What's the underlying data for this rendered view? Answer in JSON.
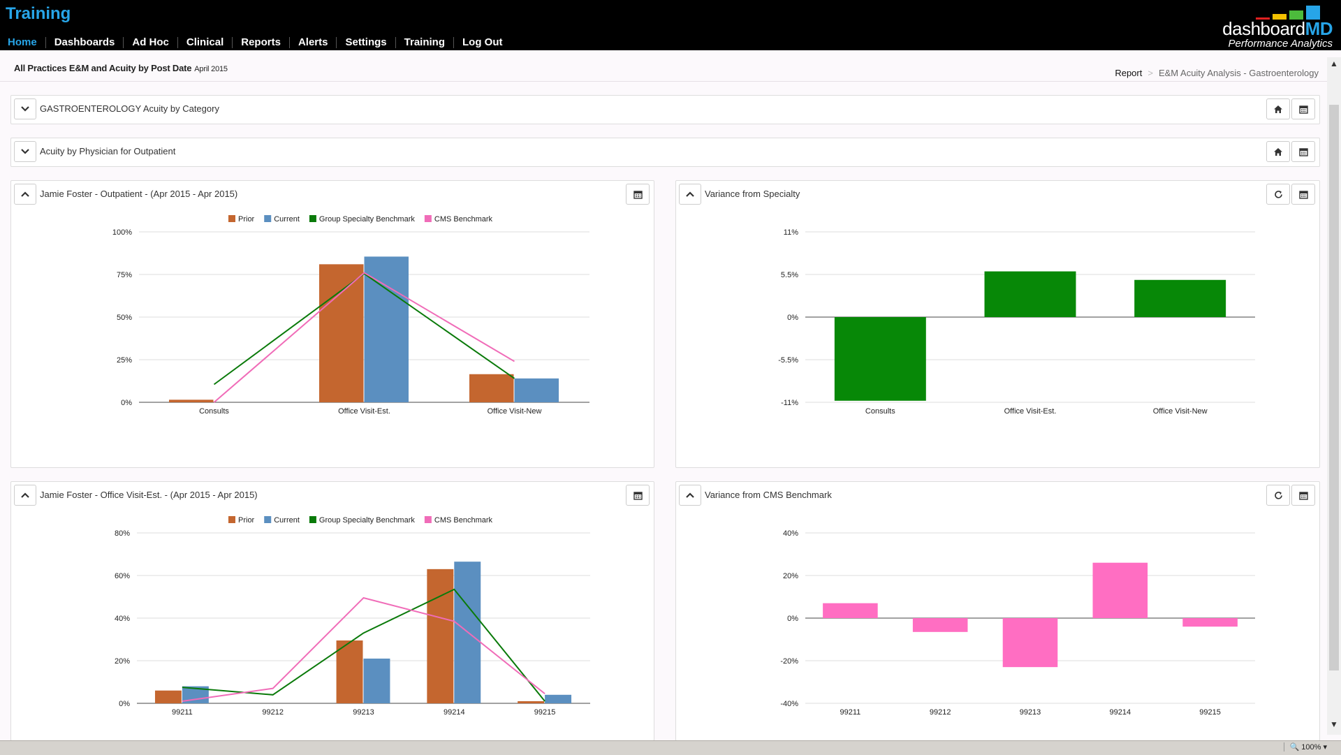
{
  "app": {
    "title": "Training",
    "logo_name_1": "dashboard",
    "logo_name_2": "MD",
    "logo_tagline": "Performance Analytics",
    "logo_colors": [
      "#e02020",
      "#f2c000",
      "#4cbb3c",
      "#27a5e8"
    ]
  },
  "nav": [
    {
      "label": "Home",
      "active": true
    },
    {
      "label": "Dashboards"
    },
    {
      "label": "Ad Hoc"
    },
    {
      "label": "Clinical"
    },
    {
      "label": "Reports"
    },
    {
      "label": "Alerts"
    },
    {
      "label": "Settings"
    },
    {
      "label": "Training"
    },
    {
      "label": "Log Out"
    }
  ],
  "header": {
    "title": "All Practices E&M and Acuity by Post Date",
    "date": "April 2015",
    "breadcrumb_root": "Report",
    "breadcrumb_sep": ">",
    "breadcrumb_current": "E&M Acuity Analysis - Gastroenterology"
  },
  "panels": {
    "category": {
      "title": "GASTROENTEROLOGY Acuity by Category"
    },
    "physician": {
      "title": "Acuity by Physician for Outpatient"
    },
    "outpatient": {
      "title": "Jamie Foster - Outpatient - (Apr 2015 - Apr 2015)"
    },
    "variance_specialty": {
      "title": "Variance from Specialty"
    },
    "office_est": {
      "title": "Jamie Foster - Office Visit-Est. - (Apr 2015 - Apr 2015)"
    },
    "variance_cms": {
      "title": "Variance from CMS Benchmark"
    }
  },
  "icons": {
    "collapse": "chevron-icon",
    "home": "home-icon",
    "calendar": "calendar-icon",
    "refresh": "refresh-icon"
  },
  "statusbar": {
    "zoom": "100%"
  },
  "chart_data": [
    {
      "id": "outpatient",
      "type": "bar",
      "categories": [
        "Consults",
        "Office Visit-Est.",
        "Office Visit-New"
      ],
      "series": [
        {
          "name": "Prior",
          "kind": "bar",
          "color": "#c4662f",
          "values": [
            1.5,
            81,
            16.5
          ]
        },
        {
          "name": "Current",
          "kind": "bar",
          "color": "#5b8fc0",
          "values": [
            0,
            85.5,
            14
          ]
        },
        {
          "name": "Group Specialty Benchmark",
          "kind": "line",
          "color": "#0a7a0a",
          "values": [
            10.5,
            75.5,
            14
          ]
        },
        {
          "name": "CMS Benchmark",
          "kind": "line",
          "color": "#f06cb8",
          "values": [
            0,
            76,
            24
          ]
        }
      ],
      "ylim": [
        0,
        100
      ],
      "yticks": [
        0,
        25,
        50,
        75,
        100
      ],
      "ytick_labels": [
        "0%",
        "25%",
        "50%",
        "75%",
        "100%"
      ],
      "legend": "top"
    },
    {
      "id": "variance_specialty",
      "type": "bar",
      "categories": [
        "Consults",
        "Office Visit-Est.",
        "Office Visit-New"
      ],
      "series": [
        {
          "kind": "bar",
          "color": "#078807",
          "values": [
            -10.8,
            5.9,
            4.8
          ]
        }
      ],
      "ylim": [
        -11,
        11
      ],
      "yticks": [
        -11,
        -5.5,
        0,
        5.5,
        11
      ],
      "ytick_labels": [
        "-11%",
        "-5.5%",
        "0%",
        "5.5%",
        "11%"
      ]
    },
    {
      "id": "office_est",
      "type": "bar",
      "categories": [
        "99211",
        "99212",
        "99213",
        "99214",
        "99215"
      ],
      "series": [
        {
          "name": "Prior",
          "kind": "bar",
          "color": "#c4662f",
          "values": [
            6,
            0,
            29.5,
            63,
            1
          ]
        },
        {
          "name": "Current",
          "kind": "bar",
          "color": "#5b8fc0",
          "values": [
            8,
            0,
            21,
            66.5,
            4
          ]
        },
        {
          "name": "Group Specialty Benchmark",
          "kind": "line",
          "color": "#0a7a0a",
          "values": [
            7.5,
            4,
            33,
            53.5,
            1
          ]
        },
        {
          "name": "CMS Benchmark",
          "kind": "line",
          "color": "#f06cb8",
          "values": [
            1,
            7,
            49.5,
            38.5,
            4.5
          ]
        }
      ],
      "ylim": [
        0,
        80
      ],
      "yticks": [
        0,
        20,
        40,
        60,
        80
      ],
      "ytick_labels": [
        "0%",
        "20%",
        "40%",
        "60%",
        "80%"
      ],
      "legend": "top"
    },
    {
      "id": "variance_cms",
      "type": "bar",
      "categories": [
        "99211",
        "99212",
        "99213",
        "99214",
        "99215"
      ],
      "series": [
        {
          "kind": "bar",
          "color": "#ff6ec2",
          "values": [
            7,
            -6.5,
            -23,
            26,
            -4
          ]
        }
      ],
      "ylim": [
        -40,
        40
      ],
      "yticks": [
        -40,
        -20,
        0,
        20,
        40
      ],
      "ytick_labels": [
        "-40%",
        "-20%",
        "0%",
        "20%",
        "40%"
      ]
    }
  ]
}
